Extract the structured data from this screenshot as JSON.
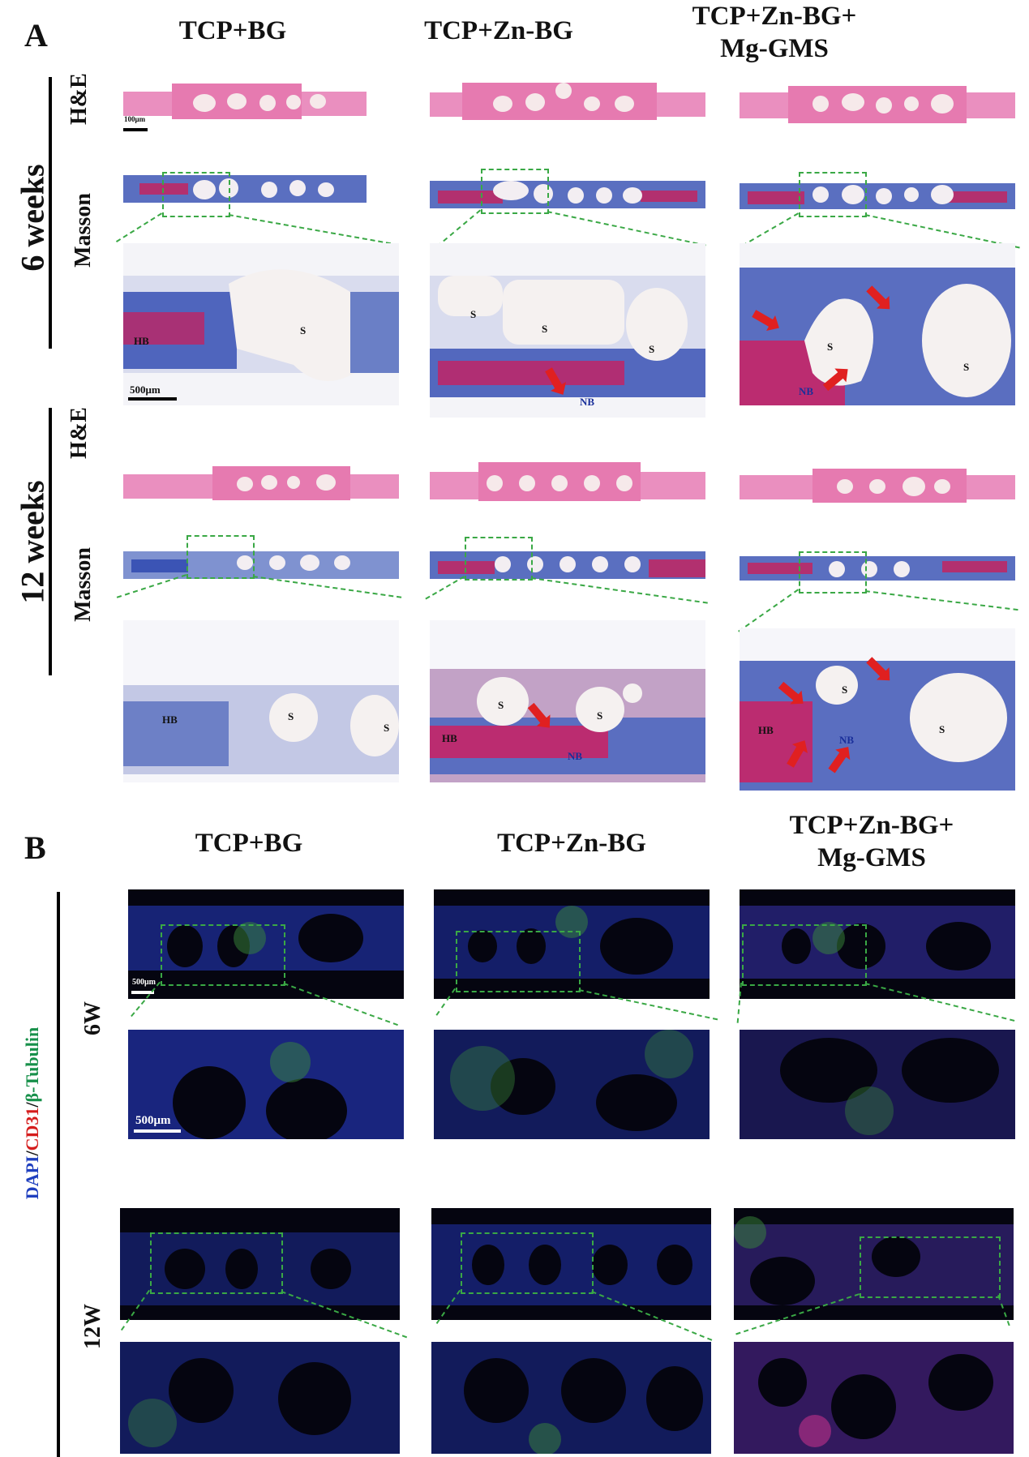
{
  "panelA": {
    "letter": "A",
    "columns": [
      "TCP+BG",
      "TCP+Zn-BG",
      "TCP+Zn-BG+\nMg-GMS"
    ],
    "time_6": "6 weeks",
    "time_12": "12 weeks",
    "stain_he": "H&E",
    "stain_masson": "Masson",
    "scale_small": "100μm",
    "scale_large": "500μm",
    "labels": {
      "S": "S",
      "HB": "HB",
      "NB": "NB"
    }
  },
  "panelB": {
    "letter": "B",
    "columns": [
      "TCP+BG",
      "TCP+Zn-BG",
      "TCP+Zn-BG+\nMg-GMS"
    ],
    "stain_dapi": "DAPI",
    "stain_sep1": "/",
    "stain_cd31": "CD31",
    "stain_sep2": "/",
    "stain_tubulin": "β-Tubulin",
    "time_6": "6W",
    "time_12": "12W",
    "scale_small": "500μm",
    "scale_large": "500μm"
  },
  "colors": {
    "he_pink": "#e57fb0",
    "masson_blue": "#4a5fb8",
    "masson_red": "#c22a6e",
    "fluor_bg": "#050510",
    "zoom_green": "#3aa845",
    "arrow_red": "#e02020"
  }
}
